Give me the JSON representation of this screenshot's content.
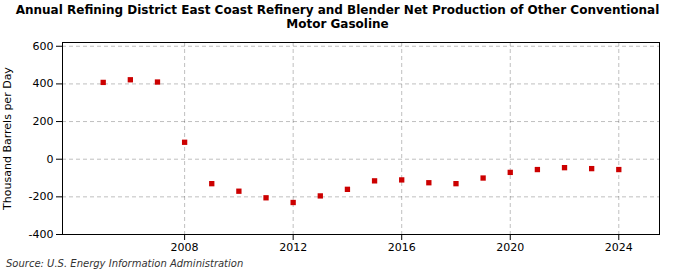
{
  "chart_data": {
    "type": "scatter",
    "title": "Annual Refining District East Coast Refinery and Blender Net Production of Other Conventional\nMotor Gasoline",
    "ylabel": "Thousand Barrels per Day",
    "source": "Source: U.S. Energy Information Administration",
    "x": [
      2005,
      2006,
      2007,
      2008,
      2009,
      2010,
      2011,
      2012,
      2013,
      2014,
      2015,
      2016,
      2017,
      2018,
      2019,
      2020,
      2021,
      2022,
      2023,
      2024
    ],
    "values": [
      408,
      422,
      410,
      90,
      -130,
      -170,
      -205,
      -230,
      -195,
      -160,
      -115,
      -110,
      -125,
      -130,
      -100,
      -70,
      -55,
      -45,
      -50,
      -55
    ],
    "color": "#cc0000",
    "marker": "square",
    "xlim": [
      2003.5,
      2025.5
    ],
    "ylim": [
      -400,
      620
    ],
    "xticks": [
      2008,
      2012,
      2016,
      2020,
      2024
    ],
    "yticks": [
      -400,
      -200,
      0,
      200,
      400,
      600
    ],
    "grid": true
  }
}
